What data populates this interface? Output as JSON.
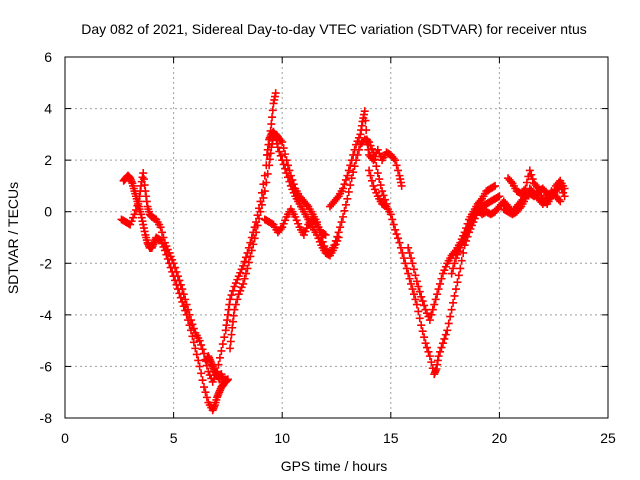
{
  "chart_data": {
    "type": "scatter",
    "title": "Day 082 of 2021, Sidereal Day-to-day VTEC variation (SDTVAR) for receiver ntus",
    "xlabel": "GPS time / hours",
    "ylabel": "SDTVAR / TECUs",
    "xlim": [
      0,
      25
    ],
    "ylim": [
      -8,
      6
    ],
    "x_ticks": [
      "0",
      "5",
      "10",
      "15",
      "20",
      "25"
    ],
    "y_ticks": [
      "-8",
      "-6",
      "-4",
      "-2",
      "0",
      "2",
      "4",
      "6"
    ],
    "grid": true,
    "marker": "+",
    "color": "#ff0000",
    "series": [
      {
        "points": [
          [
            2.7,
            1.2
          ],
          [
            2.8,
            1.3
          ],
          [
            2.9,
            1.4
          ],
          [
            3.0,
            1.3
          ],
          [
            3.1,
            1.1
          ],
          [
            3.2,
            0.8
          ],
          [
            3.3,
            0.5
          ],
          [
            3.4,
            0.2
          ],
          [
            3.5,
            -0.1
          ],
          [
            3.6,
            -0.5
          ],
          [
            3.7,
            -0.9
          ],
          [
            3.8,
            -1.2
          ],
          [
            3.9,
            -1.4
          ],
          [
            4.0,
            -1.4
          ],
          [
            4.1,
            -1.2
          ],
          [
            4.2,
            -1.0
          ],
          [
            4.4,
            -1.1
          ],
          [
            4.6,
            -1.5
          ],
          [
            4.8,
            -2.0
          ],
          [
            5.0,
            -2.5
          ],
          [
            5.2,
            -3.0
          ],
          [
            5.4,
            -3.5
          ],
          [
            5.6,
            -4.0
          ],
          [
            5.8,
            -4.6
          ],
          [
            6.0,
            -5.3
          ],
          [
            6.2,
            -6.0
          ],
          [
            6.4,
            -6.8
          ],
          [
            6.6,
            -7.4
          ],
          [
            6.8,
            -7.7
          ],
          [
            6.9,
            -7.5
          ],
          [
            7.0,
            -7.2
          ],
          [
            7.1,
            -7.0
          ],
          [
            7.2,
            -6.8
          ],
          [
            7.3,
            -6.7
          ],
          [
            7.4,
            -6.5
          ]
        ]
      },
      {
        "points": [
          [
            2.6,
            -0.3
          ],
          [
            2.8,
            -0.4
          ],
          [
            3.0,
            -0.5
          ],
          [
            3.2,
            -0.1
          ],
          [
            3.4,
            0.4
          ],
          [
            3.5,
            1.0
          ],
          [
            3.6,
            1.5
          ],
          [
            3.7,
            0.8
          ],
          [
            3.8,
            0.2
          ],
          [
            3.9,
            -0.1
          ],
          [
            4.0,
            -0.2
          ],
          [
            4.2,
            -0.3
          ],
          [
            4.4,
            -0.6
          ],
          [
            4.6,
            -1.2
          ],
          [
            4.8,
            -1.6
          ],
          [
            5.0,
            -2.0
          ],
          [
            5.2,
            -2.5
          ],
          [
            5.4,
            -3.0
          ],
          [
            5.6,
            -3.6
          ],
          [
            5.8,
            -4.2
          ],
          [
            6.0,
            -4.7
          ],
          [
            6.2,
            -5.0
          ],
          [
            6.4,
            -5.5
          ],
          [
            6.6,
            -6.2
          ],
          [
            6.8,
            -6.6
          ],
          [
            7.0,
            -6.2
          ],
          [
            7.2,
            -5.4
          ],
          [
            7.4,
            -4.6
          ],
          [
            7.5,
            -4.0
          ],
          [
            7.6,
            -3.4
          ],
          [
            7.8,
            -2.9
          ],
          [
            8.0,
            -2.5
          ],
          [
            8.2,
            -2.1
          ],
          [
            8.4,
            -1.6
          ],
          [
            8.6,
            -1.0
          ],
          [
            8.8,
            -0.4
          ],
          [
            9.0,
            0.4
          ],
          [
            9.2,
            1.4
          ],
          [
            9.4,
            2.6
          ],
          [
            9.5,
            3.4
          ],
          [
            9.6,
            4.2
          ],
          [
            9.7,
            4.6
          ]
        ]
      },
      {
        "points": [
          [
            6.5,
            -5.8
          ],
          [
            6.6,
            -5.6
          ],
          [
            6.7,
            -5.8
          ],
          [
            6.8,
            -6.0
          ],
          [
            6.9,
            -6.2
          ],
          [
            7.0,
            -6.3
          ],
          [
            7.1,
            -6.5
          ],
          [
            7.2,
            -6.3
          ],
          [
            7.3,
            -6.6
          ],
          [
            7.4,
            -6.6
          ],
          [
            7.5,
            -6.5
          ]
        ]
      },
      {
        "points": [
          [
            7.6,
            -5.3
          ],
          [
            7.7,
            -4.5
          ],
          [
            7.8,
            -3.8
          ],
          [
            8.0,
            -3.2
          ],
          [
            8.2,
            -2.8
          ],
          [
            8.4,
            -2.2
          ],
          [
            8.6,
            -1.5
          ],
          [
            8.8,
            -0.8
          ],
          [
            9.0,
            0.0
          ],
          [
            9.2,
            0.8
          ],
          [
            9.4,
            1.8
          ],
          [
            9.5,
            2.5
          ],
          [
            9.6,
            2.9
          ],
          [
            9.7,
            3.0
          ],
          [
            9.8,
            2.9
          ],
          [
            10.0,
            2.7
          ],
          [
            10.2,
            2.0
          ],
          [
            10.4,
            1.4
          ],
          [
            10.6,
            0.9
          ],
          [
            10.8,
            0.6
          ],
          [
            11.0,
            0.4
          ],
          [
            11.2,
            0.2
          ],
          [
            11.4,
            -0.1
          ],
          [
            11.6,
            -0.4
          ],
          [
            11.8,
            -1.0
          ],
          [
            12.0,
            -1.5
          ],
          [
            12.2,
            -1.6
          ],
          [
            12.4,
            -1.3
          ],
          [
            12.6,
            -0.8
          ],
          [
            12.8,
            -0.2
          ],
          [
            13.0,
            0.5
          ],
          [
            13.2,
            1.3
          ],
          [
            13.4,
            2.0
          ],
          [
            13.6,
            2.6
          ],
          [
            13.8,
            2.8
          ],
          [
            14.0,
            2.7
          ],
          [
            14.2,
            2.3
          ],
          [
            14.4,
            1.5
          ],
          [
            14.6,
            0.8
          ],
          [
            14.8,
            0.3
          ]
        ]
      },
      {
        "points": [
          [
            9.3,
            2.2
          ],
          [
            9.4,
            2.8
          ],
          [
            9.5,
            3.0
          ],
          [
            9.6,
            3.1
          ],
          [
            9.7,
            2.9
          ],
          [
            9.8,
            2.5
          ],
          [
            10.0,
            2.0
          ],
          [
            10.2,
            1.5
          ],
          [
            10.4,
            1.0
          ],
          [
            10.6,
            0.6
          ],
          [
            10.8,
            0.3
          ],
          [
            11.0,
            0.0
          ],
          [
            11.2,
            -0.3
          ],
          [
            11.4,
            -0.6
          ],
          [
            11.6,
            -0.9
          ],
          [
            11.8,
            -1.3
          ],
          [
            12.0,
            -1.6
          ],
          [
            12.2,
            -1.7
          ],
          [
            12.4,
            -1.4
          ],
          [
            12.6,
            -1.0
          ]
        ]
      },
      {
        "points": [
          [
            9.2,
            -0.3
          ],
          [
            9.4,
            -0.4
          ],
          [
            9.6,
            -0.5
          ],
          [
            9.8,
            -0.8
          ],
          [
            10.0,
            -0.6
          ],
          [
            10.2,
            -0.2
          ],
          [
            10.4,
            0.1
          ],
          [
            10.6,
            -0.2
          ],
          [
            10.8,
            -0.6
          ],
          [
            11.0,
            -0.9
          ],
          [
            11.2,
            -0.5
          ],
          [
            11.4,
            -0.3
          ],
          [
            11.6,
            -0.5
          ],
          [
            11.8,
            -0.8
          ],
          [
            12.0,
            -0.9
          ]
        ]
      },
      {
        "points": [
          [
            12.2,
            0.2
          ],
          [
            12.4,
            0.4
          ],
          [
            12.6,
            0.6
          ],
          [
            12.8,
            0.9
          ],
          [
            13.0,
            1.4
          ],
          [
            13.2,
            2.0
          ],
          [
            13.4,
            2.6
          ],
          [
            13.6,
            3.0
          ],
          [
            13.7,
            3.5
          ],
          [
            13.8,
            3.9
          ],
          [
            13.9,
            2.8
          ],
          [
            14.0,
            2.2
          ],
          [
            14.2,
            2.0
          ],
          [
            14.4,
            2.4
          ],
          [
            14.6,
            2.0
          ],
          [
            14.8,
            2.3
          ],
          [
            15.0,
            2.2
          ],
          [
            15.2,
            2.0
          ],
          [
            15.4,
            1.4
          ],
          [
            15.5,
            1.0
          ]
        ]
      },
      {
        "points": [
          [
            14.0,
            1.6
          ],
          [
            14.2,
            1.0
          ],
          [
            14.4,
            0.6
          ],
          [
            14.6,
            0.3
          ],
          [
            14.8,
            0.2
          ],
          [
            15.0,
            -0.1
          ],
          [
            15.2,
            -0.7
          ],
          [
            15.4,
            -1.2
          ],
          [
            15.6,
            -1.8
          ],
          [
            15.8,
            -2.4
          ],
          [
            16.0,
            -3.0
          ],
          [
            16.2,
            -3.6
          ],
          [
            16.4,
            -4.4
          ],
          [
            16.6,
            -5.1
          ],
          [
            16.8,
            -5.6
          ],
          [
            17.0,
            -6.3
          ],
          [
            17.1,
            -6.1
          ],
          [
            17.2,
            -5.6
          ],
          [
            17.4,
            -5.1
          ],
          [
            17.6,
            -4.6
          ],
          [
            17.8,
            -3.8
          ],
          [
            18.0,
            -3.0
          ],
          [
            18.2,
            -2.2
          ],
          [
            18.4,
            -1.3
          ],
          [
            18.6,
            -0.8
          ],
          [
            18.8,
            -0.4
          ],
          [
            19.0,
            0.0
          ],
          [
            19.2,
            0.2
          ],
          [
            19.4,
            0.3
          ],
          [
            19.6,
            0.4
          ],
          [
            19.8,
            0.5
          ],
          [
            20.0,
            0.6
          ]
        ]
      },
      {
        "points": [
          [
            15.8,
            -1.4
          ],
          [
            16.0,
            -2.0
          ],
          [
            16.2,
            -2.7
          ],
          [
            16.4,
            -3.3
          ],
          [
            16.6,
            -3.8
          ],
          [
            16.8,
            -4.2
          ],
          [
            17.0,
            -3.6
          ],
          [
            17.2,
            -3.0
          ],
          [
            17.4,
            -2.4
          ],
          [
            17.6,
            -2.0
          ],
          [
            17.8,
            -1.7
          ],
          [
            18.0,
            -1.5
          ],
          [
            18.2,
            -1.2
          ],
          [
            18.4,
            -0.8
          ],
          [
            18.6,
            -0.3
          ],
          [
            18.8,
            0.0
          ],
          [
            19.0,
            0.3
          ],
          [
            19.2,
            0.5
          ],
          [
            19.4,
            0.8
          ],
          [
            19.6,
            0.9
          ],
          [
            19.8,
            1.0
          ]
        ]
      },
      {
        "points": [
          [
            17.8,
            -2.4
          ],
          [
            18.0,
            -1.8
          ],
          [
            18.2,
            -1.4
          ],
          [
            18.4,
            -1.0
          ],
          [
            18.6,
            -0.6
          ],
          [
            18.8,
            -0.2
          ],
          [
            19.0,
            0.1
          ],
          [
            19.2,
            -0.1
          ],
          [
            19.4,
            0.0
          ],
          [
            19.6,
            -0.1
          ],
          [
            19.8,
            0.0
          ],
          [
            20.0,
            0.2
          ],
          [
            20.2,
            0.4
          ],
          [
            20.4,
            0.2
          ],
          [
            20.6,
            0.0
          ],
          [
            20.8,
            0.2
          ],
          [
            21.0,
            0.4
          ],
          [
            21.2,
            0.6
          ],
          [
            21.4,
            0.7
          ],
          [
            21.6,
            0.6
          ],
          [
            21.8,
            0.8
          ],
          [
            22.0,
            0.9
          ],
          [
            22.2,
            0.7
          ],
          [
            22.4,
            0.6
          ],
          [
            22.6,
            0.8
          ],
          [
            22.8,
            1.0
          ],
          [
            23.0,
            0.6
          ]
        ]
      },
      {
        "points": [
          [
            20.4,
            1.3
          ],
          [
            20.6,
            1.1
          ],
          [
            20.8,
            0.8
          ],
          [
            21.0,
            0.7
          ],
          [
            21.2,
            0.9
          ],
          [
            21.4,
            1.6
          ],
          [
            21.6,
            1.1
          ],
          [
            21.8,
            0.9
          ],
          [
            22.0,
            0.5
          ],
          [
            22.2,
            0.3
          ],
          [
            22.4,
            0.6
          ],
          [
            22.6,
            1.0
          ],
          [
            22.8,
            1.2
          ],
          [
            23.0,
            0.9
          ]
        ]
      },
      {
        "points": [
          [
            20.2,
            0.1
          ],
          [
            20.4,
            0.0
          ],
          [
            20.6,
            -0.1
          ],
          [
            20.8,
            0.0
          ],
          [
            21.0,
            0.2
          ],
          [
            21.2,
            0.5
          ],
          [
            21.4,
            0.9
          ],
          [
            21.6,
            0.7
          ],
          [
            21.8,
            0.5
          ],
          [
            22.0,
            0.3
          ],
          [
            22.2,
            0.5
          ],
          [
            22.4,
            0.8
          ],
          [
            22.6,
            0.6
          ],
          [
            22.8,
            0.4
          ]
        ]
      }
    ]
  }
}
